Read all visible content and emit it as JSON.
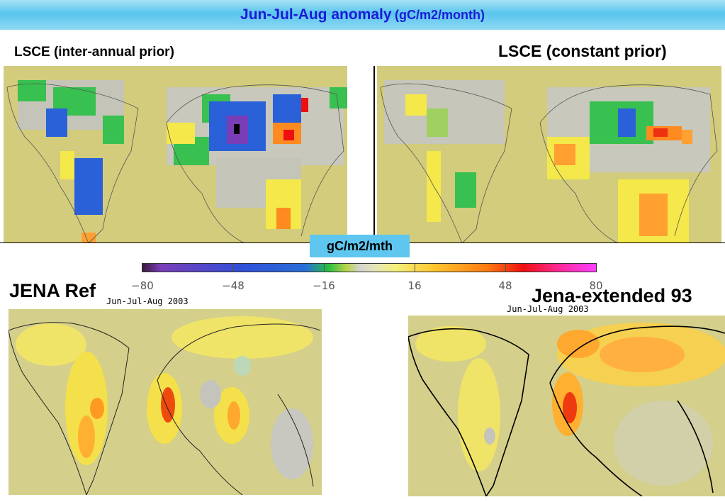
{
  "header": {
    "title_main": "Jun-Jul-Aug anomaly",
    "title_unit": "(gC/m2/month)"
  },
  "panels": {
    "lsce_interannual": "LSCE (inter-annual prior)",
    "lsce_constant": "LSCE (constant prior)",
    "jena_ref": "JENA Ref",
    "jena_ref_subtitle": "Jun-Jul-Aug 2003",
    "jena_extended": "Jena-extended 93",
    "jena_extended_subtitle": "Jun-Jul-Aug 2003"
  },
  "colorbar": {
    "unit": "gC/m2/mth",
    "ticks": [
      "−80",
      "−48",
      "−16",
      "16",
      "48",
      "80"
    ]
  },
  "chart_data": {
    "type": "heatmap",
    "title": "Jun-Jul-Aug anomaly (gC/m2/month)",
    "colorbar_label": "gC/m2/mth",
    "colorbar_range": [
      -80,
      80
    ],
    "colorbar_ticks": [
      -80,
      -48,
      -16,
      16,
      48,
      80
    ],
    "panels": [
      "LSCE (inter-annual prior)",
      "LSCE (constant prior)",
      "JENA Ref",
      "Jena-extended 93"
    ],
    "colors": {
      "low": "#7a3db8",
      "neutral": "#d2cc7c",
      "high": "#ff40ff"
    }
  }
}
